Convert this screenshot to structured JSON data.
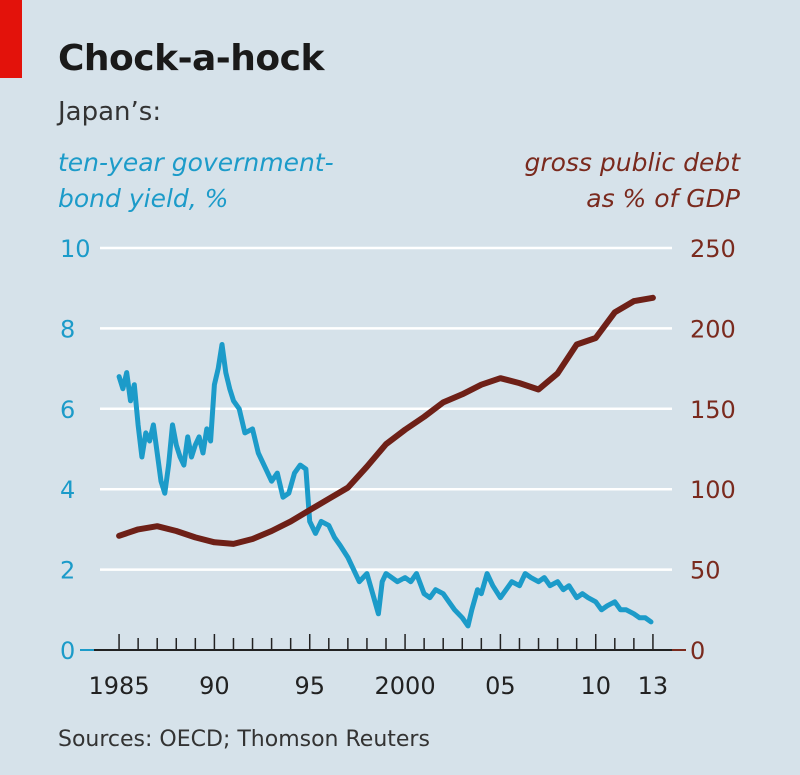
{
  "chart_data": {
    "type": "line",
    "title": "Chock-a-hock",
    "subtitle": "Japan’s:",
    "source": "Sources: OECD; Thomson Reuters",
    "x_ticks": [
      "1985",
      "90",
      "95",
      "2000",
      "05",
      "10",
      "13"
    ],
    "x_tick_years": [
      1985,
      1990,
      1995,
      2000,
      2005,
      2010,
      2013
    ],
    "xlim": [
      1984,
      2014
    ],
    "y_left": {
      "label_lines": [
        "ten-year government-",
        "bond yield, %"
      ],
      "ticks": [
        0,
        2,
        4,
        6,
        8,
        10
      ],
      "ylim": [
        0,
        10
      ]
    },
    "y_right": {
      "label_lines": [
        "gross public debt",
        "as % of GDP"
      ],
      "ticks": [
        0,
        50,
        100,
        150,
        200,
        250
      ],
      "ylim": [
        0,
        250
      ]
    },
    "grid": true,
    "colors": {
      "bond_yield": "#1c9bc9",
      "public_debt": "#6e2017",
      "background": "#d6e2ea",
      "accent": "#e3120b"
    },
    "series": [
      {
        "axis": "left",
        "x": [
          1985.0,
          1985.2,
          1985.4,
          1985.6,
          1985.8,
          1986.0,
          1986.2,
          1986.4,
          1986.6,
          1986.8,
          1987.0,
          1987.2,
          1987.4,
          1987.6,
          1987.8,
          1988.0,
          1988.2,
          1988.4,
          1988.6,
          1988.8,
          1989.0,
          1989.2,
          1989.4,
          1989.6,
          1989.8,
          1990.0,
          1990.2,
          1990.4,
          1990.6,
          1990.8,
          1991.0,
          1991.3,
          1991.6,
          1992.0,
          1992.3,
          1992.6,
          1993.0,
          1993.3,
          1993.6,
          1993.9,
          1994.2,
          1994.5,
          1994.8,
          1995.0,
          1995.3,
          1995.6,
          1996.0,
          1996.3,
          1996.6,
          1997.0,
          1997.3,
          1997.6,
          1998.0,
          1998.3,
          1998.6,
          1998.8,
          1999.0,
          1999.3,
          1999.6,
          2000.0,
          2000.3,
          2000.6,
          2001.0,
          2001.3,
          2001.6,
          2002.0,
          2002.3,
          2002.6,
          2003.0,
          2003.3,
          2003.5,
          2003.8,
          2004.0,
          2004.3,
          2004.6,
          2005.0,
          2005.3,
          2005.6,
          2006.0,
          2006.3,
          2006.6,
          2007.0,
          2007.3,
          2007.6,
          2008.0,
          2008.3,
          2008.6,
          2009.0,
          2009.3,
          2009.6,
          2010.0,
          2010.3,
          2010.6,
          2011.0,
          2011.3,
          2011.6,
          2012.0,
          2012.3,
          2012.6,
          2012.9
        ],
        "values": [
          6.8,
          6.5,
          6.9,
          6.2,
          6.6,
          5.6,
          4.8,
          5.4,
          5.2,
          5.6,
          4.9,
          4.2,
          3.9,
          4.6,
          5.6,
          5.1,
          4.8,
          4.6,
          5.3,
          4.8,
          5.1,
          5.3,
          4.9,
          5.5,
          5.2,
          6.6,
          7.0,
          7.6,
          6.9,
          6.5,
          6.2,
          6.0,
          5.4,
          5.5,
          4.9,
          4.6,
          4.2,
          4.4,
          3.8,
          3.9,
          4.4,
          4.6,
          4.5,
          3.2,
          2.9,
          3.2,
          3.1,
          2.8,
          2.6,
          2.3,
          2.0,
          1.7,
          1.9,
          1.4,
          0.9,
          1.7,
          1.9,
          1.8,
          1.7,
          1.8,
          1.7,
          1.9,
          1.4,
          1.3,
          1.5,
          1.4,
          1.2,
          1.0,
          0.8,
          0.6,
          1.0,
          1.5,
          1.4,
          1.9,
          1.6,
          1.3,
          1.5,
          1.7,
          1.6,
          1.9,
          1.8,
          1.7,
          1.8,
          1.6,
          1.7,
          1.5,
          1.6,
          1.3,
          1.4,
          1.3,
          1.2,
          1.0,
          1.1,
          1.2,
          1.0,
          1.0,
          0.9,
          0.8,
          0.8,
          0.7
        ]
      },
      {
        "axis": "right",
        "x": [
          1985,
          1986,
          1987,
          1988,
          1989,
          1990,
          1991,
          1992,
          1993,
          1994,
          1995,
          1996,
          1997,
          1998,
          1999,
          2000,
          2001,
          2002,
          2003,
          2004,
          2005,
          2006,
          2007,
          2008,
          2009,
          2010,
          2011,
          2012,
          2013
        ],
        "values": [
          71,
          75,
          77,
          74,
          70,
          67,
          66,
          69,
          74,
          80,
          87,
          94,
          101,
          114,
          128,
          137,
          145,
          154,
          159,
          165,
          169,
          166,
          162,
          172,
          190,
          194,
          210,
          217,
          219
        ]
      }
    ]
  }
}
